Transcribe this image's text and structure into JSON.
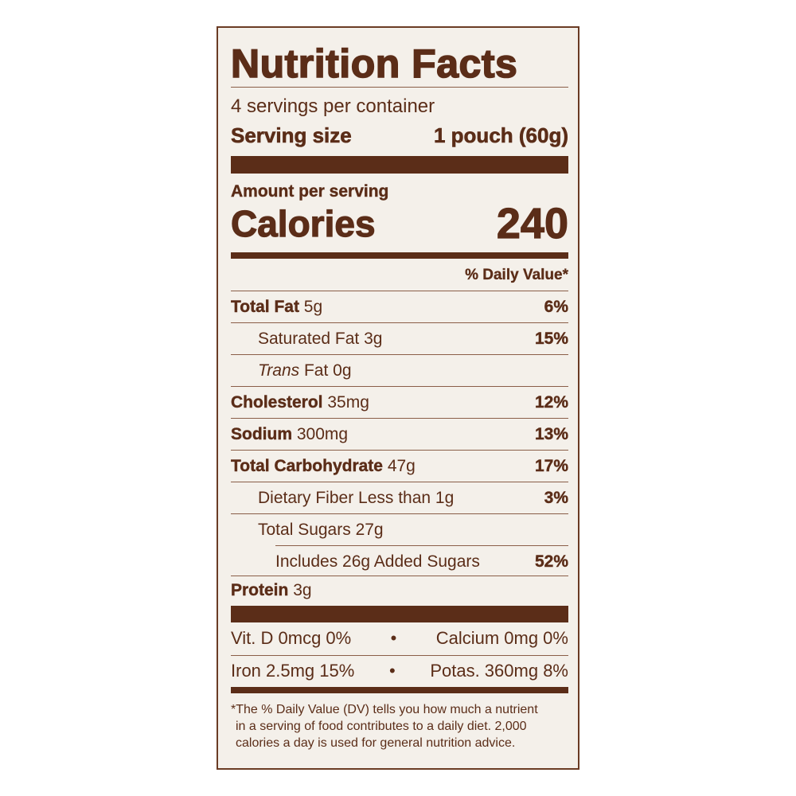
{
  "title": "Nutrition Facts",
  "servings_per_container": "4 servings per container",
  "serving_size": {
    "label": "Serving size",
    "value": "1 pouch (60g)"
  },
  "amount_per_serving": "Amount per serving",
  "calories": {
    "label": "Calories",
    "value": "240"
  },
  "daily_value_header": "% Daily Value*",
  "nutrients": [
    {
      "name": "Total Fat",
      "amount": "5g",
      "dv": "6%"
    },
    {
      "name": "Saturated Fat 3g",
      "amount": "",
      "dv": "15%"
    },
    {
      "name": "Trans",
      "name2": "Fat 0g",
      "amount": "",
      "dv": ""
    },
    {
      "name": "Cholesterol",
      "amount": "35mg",
      "dv": "12%"
    },
    {
      "name": "Sodium",
      "amount": "300mg",
      "dv": "13%"
    },
    {
      "name": "Total Carbohydrate",
      "amount": "47g",
      "dv": "17%"
    },
    {
      "name": "Dietary Fiber Less than 1g",
      "amount": "",
      "dv": "3%"
    },
    {
      "name": "Total Sugars 27g",
      "amount": "",
      "dv": ""
    },
    {
      "name": "Includes 26g Added Sugars",
      "amount": "",
      "dv": "52%"
    },
    {
      "name": "Protein",
      "amount": "3g",
      "dv": ""
    }
  ],
  "vitamins": [
    {
      "left": "Vit. D 0mcg 0%",
      "sep": "•",
      "right": "Calcium 0mg 0%"
    },
    {
      "left": "Iron 2.5mg 15%",
      "sep": "•",
      "right": "Potas. 360mg 8%"
    }
  ],
  "footnote": [
    "*The % Daily Value (DV) tells you how much a nutrient",
    "in a serving of food contributes to a daily diet. 2,000",
    "calories a day is used for general nutrition advice."
  ],
  "colors": {
    "ink": "#5b2d18",
    "background": "#f4f0ea"
  }
}
